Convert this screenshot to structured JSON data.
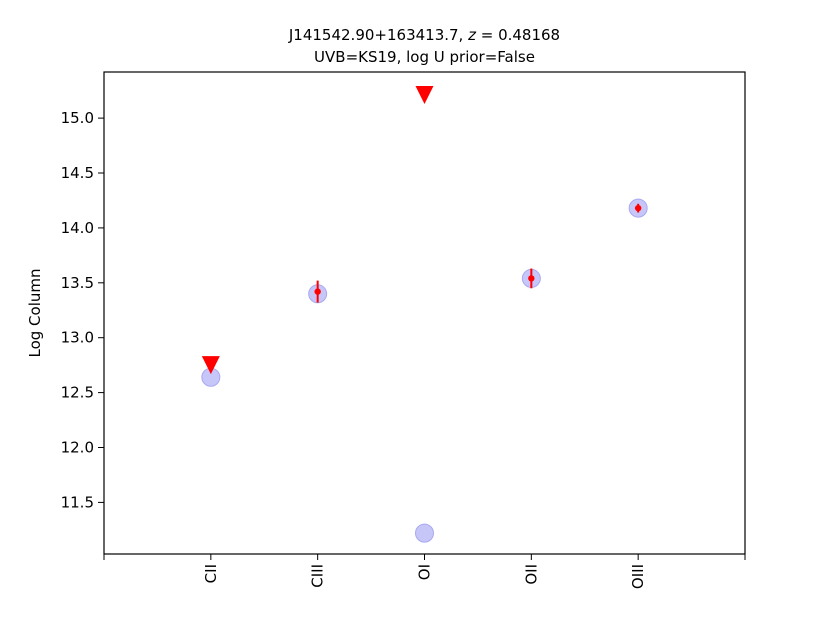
{
  "chart_data": {
    "type": "scatter",
    "title_line1": "J141542.90+163413.7, z = 0.48168",
    "title_line2": "UVB=KS19, log U prior=False",
    "xlabel": "",
    "ylabel": "Log Column",
    "categories": [
      "CII",
      "CIII",
      "OI",
      "OII",
      "OIII"
    ],
    "xlim": [
      -1,
      5
    ],
    "ylim": [
      11.03,
      15.42
    ],
    "yticks": [
      "11.5",
      "12.0",
      "12.5",
      "13.0",
      "13.5",
      "14.0",
      "14.5",
      "15.0"
    ],
    "grid": false,
    "model": {
      "color": "#b8b8f8",
      "values": [
        12.64,
        13.4,
        11.22,
        13.54,
        14.18
      ]
    },
    "observed": {
      "color": "#ff0000",
      "points": [
        {
          "ion": "CII",
          "value": 12.75,
          "kind": "upper_limit"
        },
        {
          "ion": "CIII",
          "value": 13.42,
          "err": 0.1,
          "kind": "detection"
        },
        {
          "ion": "OI",
          "value": 15.21,
          "kind": "upper_limit"
        },
        {
          "ion": "OII",
          "value": 13.54,
          "err": 0.09,
          "kind": "detection"
        },
        {
          "ion": "OIII",
          "value": 14.18,
          "err": 0.04,
          "kind": "detection"
        }
      ]
    }
  }
}
